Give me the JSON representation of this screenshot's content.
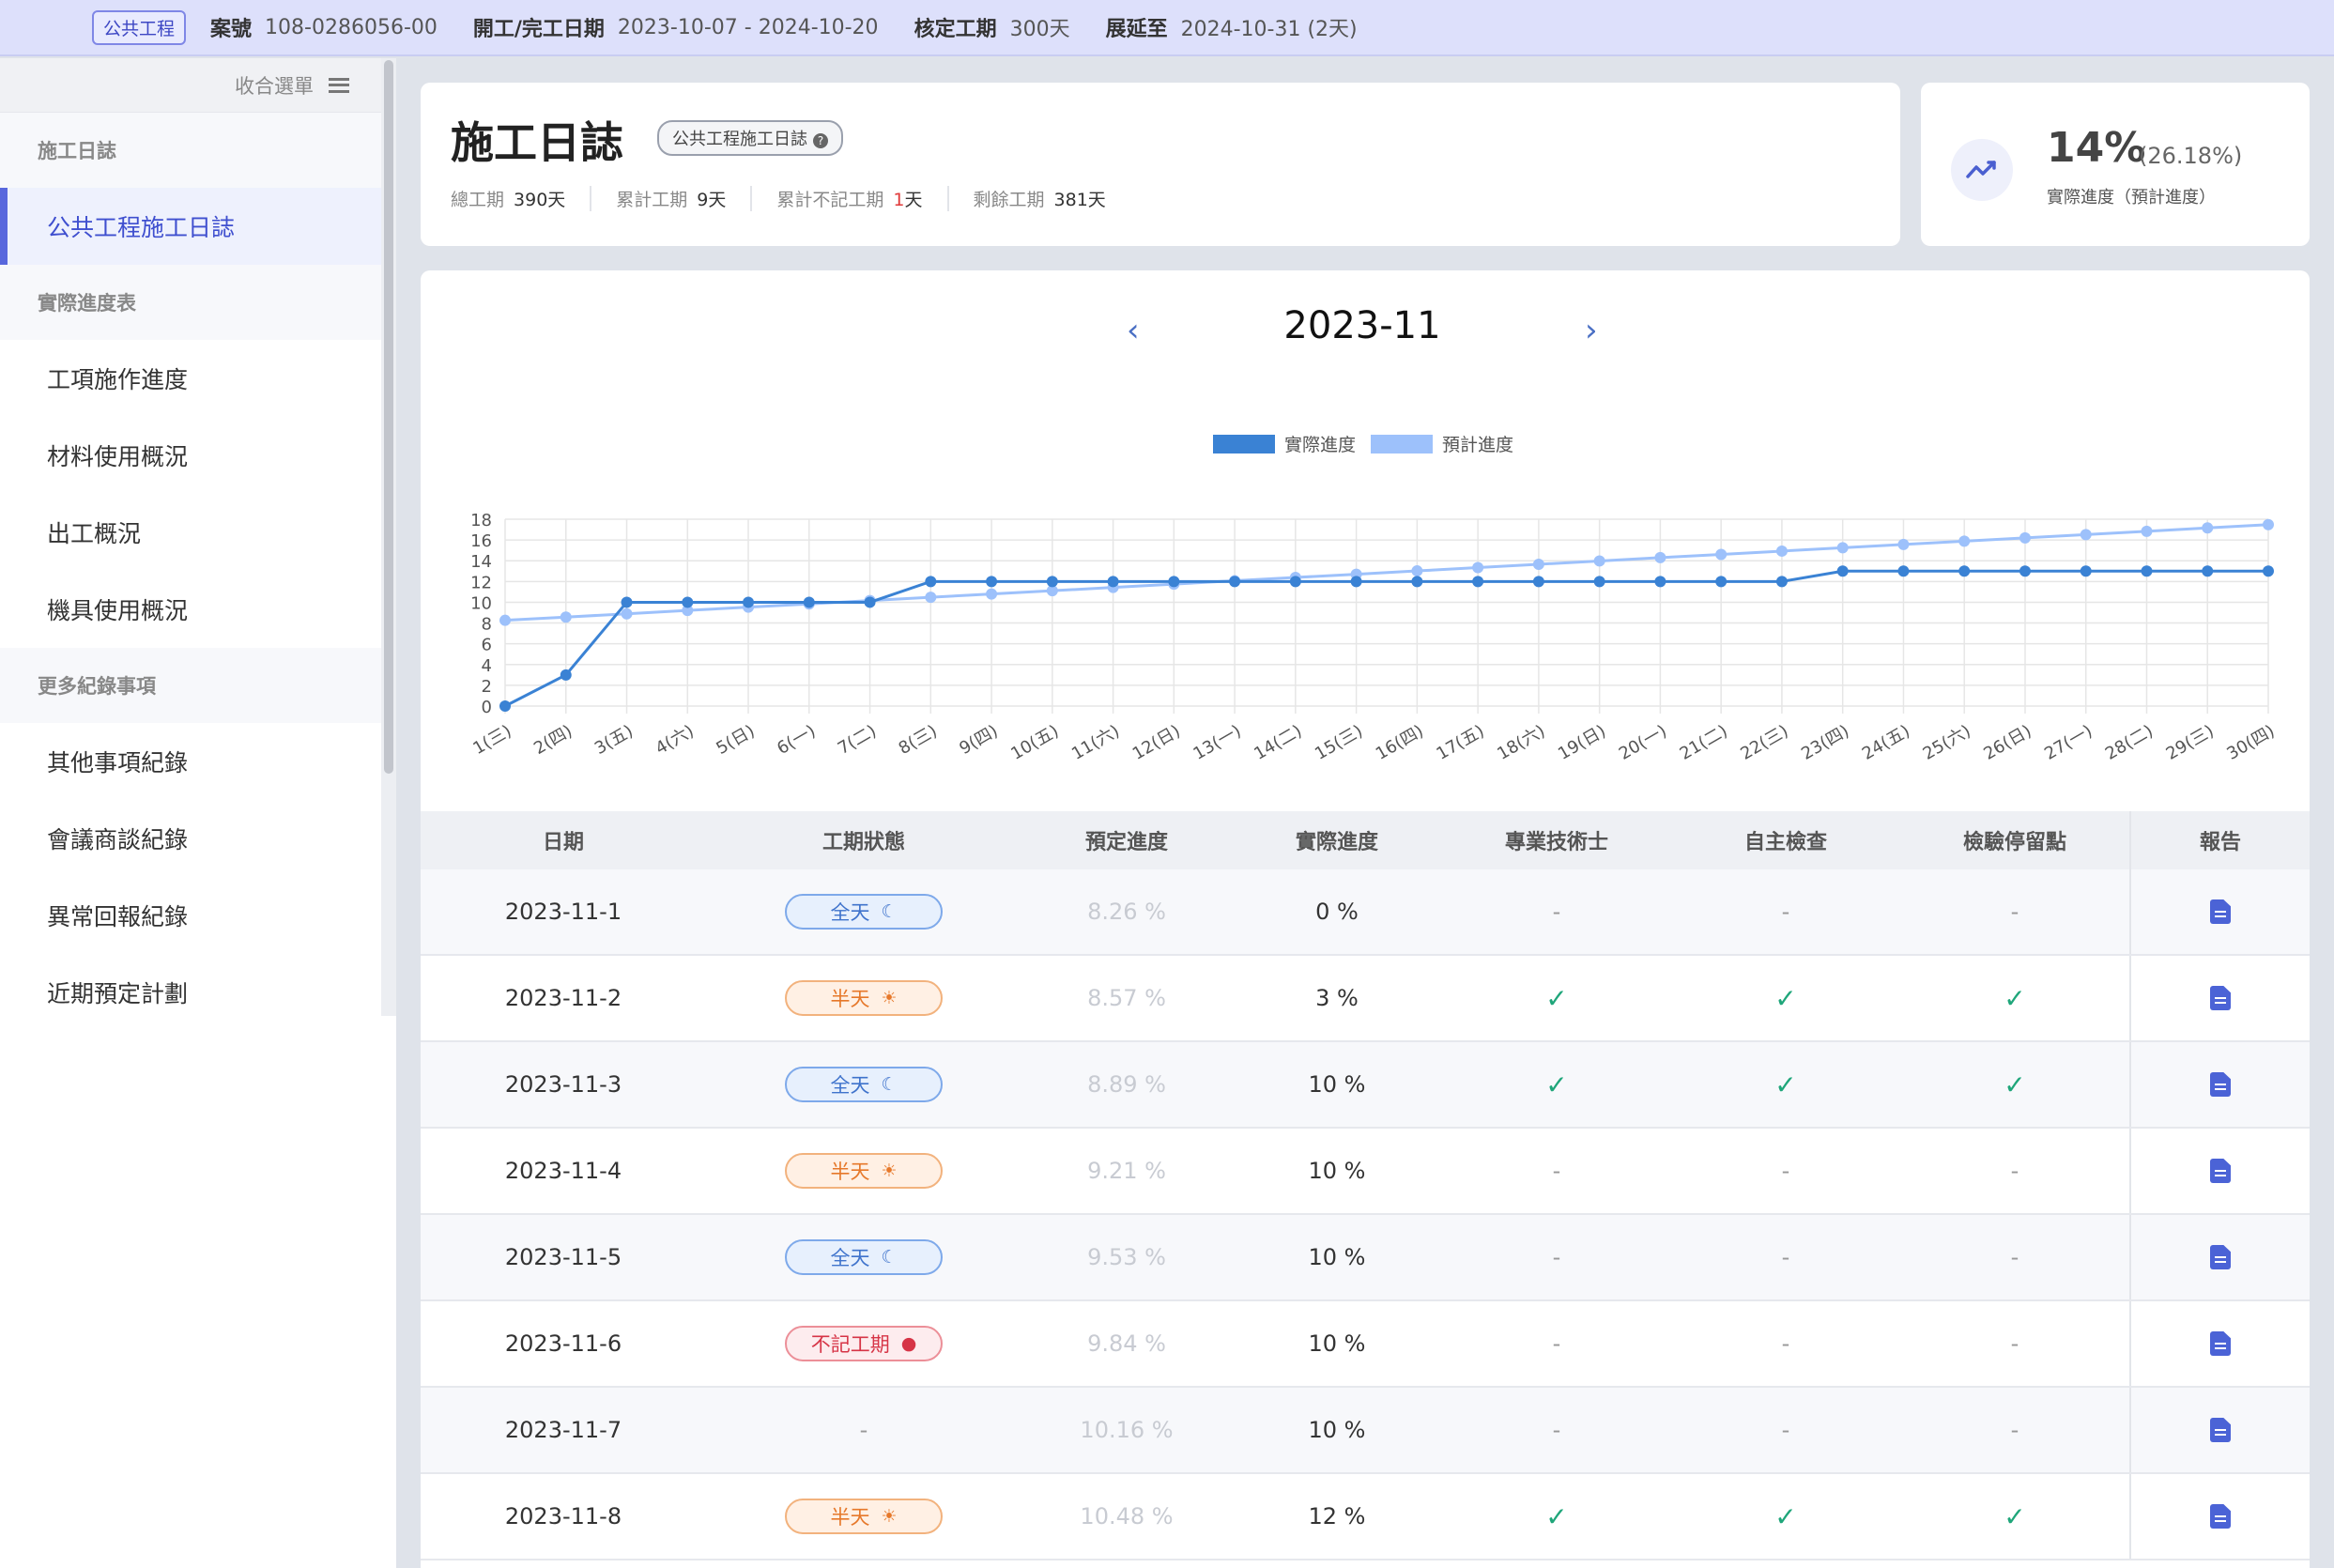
{
  "topbar": {
    "tag": "公共工程",
    "case_label": "案號",
    "case_value": "108-0286056-00",
    "period_label": "開工/完工日期",
    "period_value": "2023-10-07 - 2024-10-20",
    "approved_label": "核定工期",
    "approved_value": "300天",
    "extend_label": "展延至",
    "extend_value": "2024-10-31 (2天)"
  },
  "sidebar": {
    "collapse_label": "收合選單",
    "sections": [
      {
        "title": "施工日誌",
        "items": [
          {
            "label": "公共工程施工日誌",
            "active": true
          }
        ]
      },
      {
        "title": "實際進度表",
        "items": [
          {
            "label": "工項施作進度"
          },
          {
            "label": "材料使用概況"
          },
          {
            "label": "出工概況"
          },
          {
            "label": "機具使用概況"
          }
        ]
      },
      {
        "title": "更多紀錄事項",
        "items": [
          {
            "label": "其他事項紀錄"
          },
          {
            "label": "會議商談紀錄"
          },
          {
            "label": "異常回報紀錄"
          },
          {
            "label": "近期預定計劃"
          }
        ]
      }
    ]
  },
  "header": {
    "title": "施工日誌",
    "badge": "公共工程施工日誌",
    "total_label": "總工期",
    "total_value": "390天",
    "cum_label": "累計工期",
    "cum_value": "9天",
    "excl_label": "累計不記工期",
    "excl_value": "1",
    "excl_unit": "天",
    "remain_label": "剩餘工期",
    "remain_value": "381天"
  },
  "progress": {
    "value": "14%",
    "planned": "(26.18%)",
    "label": "實際進度（預計進度）",
    "icon": "trending-up-icon"
  },
  "month": "2023-11",
  "chart_data": {
    "type": "line",
    "categories": [
      "1(三)",
      "2(四)",
      "3(五)",
      "4(六)",
      "5(日)",
      "6(一)",
      "7(二)",
      "8(三)",
      "9(四)",
      "10(五)",
      "11(六)",
      "12(日)",
      "13(一)",
      "14(二)",
      "15(三)",
      "16(四)",
      "17(五)",
      "18(六)",
      "19(日)",
      "20(一)",
      "21(二)",
      "22(三)",
      "23(四)",
      "24(五)",
      "25(六)",
      "26(日)",
      "27(一)",
      "28(二)",
      "29(三)",
      "30(四)"
    ],
    "series": [
      {
        "name": "實際進度",
        "color": "#3a82d4",
        "values": [
          0,
          3,
          10,
          10,
          10,
          10,
          10,
          12,
          12,
          12,
          12,
          12,
          12,
          12,
          12,
          12,
          12,
          12,
          12,
          12,
          12,
          12,
          13,
          13,
          13,
          13,
          13,
          13,
          13,
          13
        ]
      },
      {
        "name": "預計進度",
        "color": "#9dc1fb",
        "values": [
          8.26,
          8.57,
          8.89,
          9.21,
          9.53,
          9.84,
          10.16,
          10.48,
          10.8,
          11.11,
          11.43,
          11.75,
          12.07,
          12.39,
          12.7,
          13.02,
          13.34,
          13.66,
          13.98,
          14.3,
          14.61,
          14.93,
          15.25,
          15.57,
          15.89,
          16.2,
          16.52,
          16.84,
          17.16,
          17.48
        ]
      }
    ],
    "yticks": [
      0,
      2,
      4,
      6,
      8,
      10,
      12,
      14,
      16,
      18
    ],
    "ylim": [
      0,
      18
    ],
    "legend": "top-center",
    "grid": true
  },
  "table": {
    "headers": [
      "日期",
      "工期狀態",
      "預定進度",
      "實際進度",
      "專業技術士",
      "自主檢查",
      "檢驗停留點",
      "報告"
    ],
    "rows": [
      {
        "date": "2023-11-1",
        "status": "全天",
        "status_type": "full",
        "plan": "8.26 %",
        "actual": "0 %",
        "tech": "-",
        "self": "-",
        "hold": "-"
      },
      {
        "date": "2023-11-2",
        "status": "半天",
        "status_type": "half",
        "plan": "8.57 %",
        "actual": "3 %",
        "tech": "✓",
        "self": "✓",
        "hold": "✓"
      },
      {
        "date": "2023-11-3",
        "status": "全天",
        "status_type": "full",
        "plan": "8.89 %",
        "actual": "10 %",
        "tech": "✓",
        "self": "✓",
        "hold": "✓"
      },
      {
        "date": "2023-11-4",
        "status": "半天",
        "status_type": "half",
        "plan": "9.21 %",
        "actual": "10 %",
        "tech": "-",
        "self": "-",
        "hold": "-"
      },
      {
        "date": "2023-11-5",
        "status": "全天",
        "status_type": "full",
        "plan": "9.53 %",
        "actual": "10 %",
        "tech": "-",
        "self": "-",
        "hold": "-"
      },
      {
        "date": "2023-11-6",
        "status": "不記工期",
        "status_type": "off",
        "plan": "9.84 %",
        "actual": "10 %",
        "tech": "-",
        "self": "-",
        "hold": "-"
      },
      {
        "date": "2023-11-7",
        "status": "-",
        "status_type": "none",
        "plan": "10.16 %",
        "actual": "10 %",
        "tech": "-",
        "self": "-",
        "hold": "-"
      },
      {
        "date": "2023-11-8",
        "status": "半天",
        "status_type": "half",
        "plan": "10.48 %",
        "actual": "12 %",
        "tech": "✓",
        "self": "✓",
        "hold": "✓"
      }
    ]
  }
}
